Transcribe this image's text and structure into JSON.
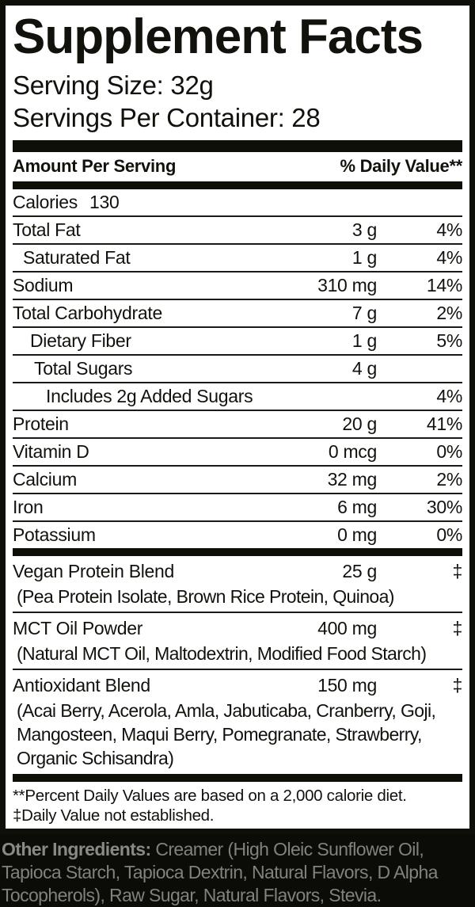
{
  "colors": {
    "label_background": "#ffffff",
    "label_text": "#12120d",
    "frame_black": "#0f0f0a",
    "footer_background": "#0b0b08",
    "footer_text": "#82817c"
  },
  "label": {
    "title": "Supplement Facts",
    "serving_size": "Serving Size: 32g",
    "servings_per_container": "Servings Per Container: 28",
    "header_left": "Amount Per Serving",
    "header_right": "% Daily Value**",
    "calories": {
      "name": "Calories",
      "value": "130"
    },
    "nutrients": [
      {
        "name": "Total Fat",
        "amount": "3 g",
        "dv": "4%",
        "indent": 0
      },
      {
        "name": "Saturated Fat",
        "amount": "1 g",
        "dv": "4%",
        "indent": 1
      },
      {
        "name": "Sodium",
        "amount": "310 mg",
        "dv": "14%",
        "indent": 0
      },
      {
        "name": "Total Carbohydrate",
        "amount": "7 g",
        "dv": "2%",
        "indent": 0
      },
      {
        "name": "Dietary Fiber",
        "amount": "1 g",
        "dv": "5%",
        "indent": 2
      },
      {
        "name": "Total Sugars",
        "amount": "4 g",
        "dv": "",
        "indent": 3
      },
      {
        "name": "Includes 2g Added Sugars",
        "amount": "",
        "dv": "4%",
        "indent": 4
      },
      {
        "name": "Protein",
        "amount": "20 g",
        "dv": "41%",
        "indent": 0
      },
      {
        "name": "Vitamin D",
        "amount": "0 mcg",
        "dv": "0%",
        "indent": 0
      },
      {
        "name": "Calcium",
        "amount": "32 mg",
        "dv": "2%",
        "indent": 0
      },
      {
        "name": "Iron",
        "amount": "6 mg",
        "dv": "30%",
        "indent": 0
      },
      {
        "name": "Potassium",
        "amount": "0 mg",
        "dv": "0%",
        "indent": 0
      }
    ],
    "blends": [
      {
        "name": "Vegan Protein Blend",
        "amount": "25 g",
        "dv": "‡",
        "components": "(Pea Protein Isolate, Brown Rice Protein, Quinoa)"
      },
      {
        "name": "MCT Oil Powder",
        "amount": "400 mg",
        "dv": "‡",
        "components": "(Natural MCT Oil, Maltodextrin, Modified Food Starch)"
      },
      {
        "name": "Antioxidant Blend",
        "amount": "150 mg",
        "dv": "‡",
        "components": "(Acai Berry, Acerola, Amla, Jabuticaba, Cranberry, Goji, Mangosteen, Maqui Berry, Pomegranate, Strawberry, Organic Schisandra)"
      }
    ],
    "footnotes": [
      "**Percent Daily Values are based on a 2,000 calorie diet.",
      "‡Daily Value not established."
    ]
  },
  "other_ingredients": {
    "label": "Other Ingredients:",
    "line1_rest": "Creamer (High Oleic Sunflower Oil,",
    "line2": "Tapioca Starch, Tapioca Dextrin, Natural Flavors, D Alpha",
    "line3": "Tocopherols), Raw Sugar, Natural Flavors, Stevia.",
    "full_text": "Creamer (High Oleic Sunflower Oil, Tapioca Starch, Tapioca Dextrin, Natural Flavors, D Alpha Tocopherols), Raw Sugar, Natural Flavors, Stevia."
  }
}
